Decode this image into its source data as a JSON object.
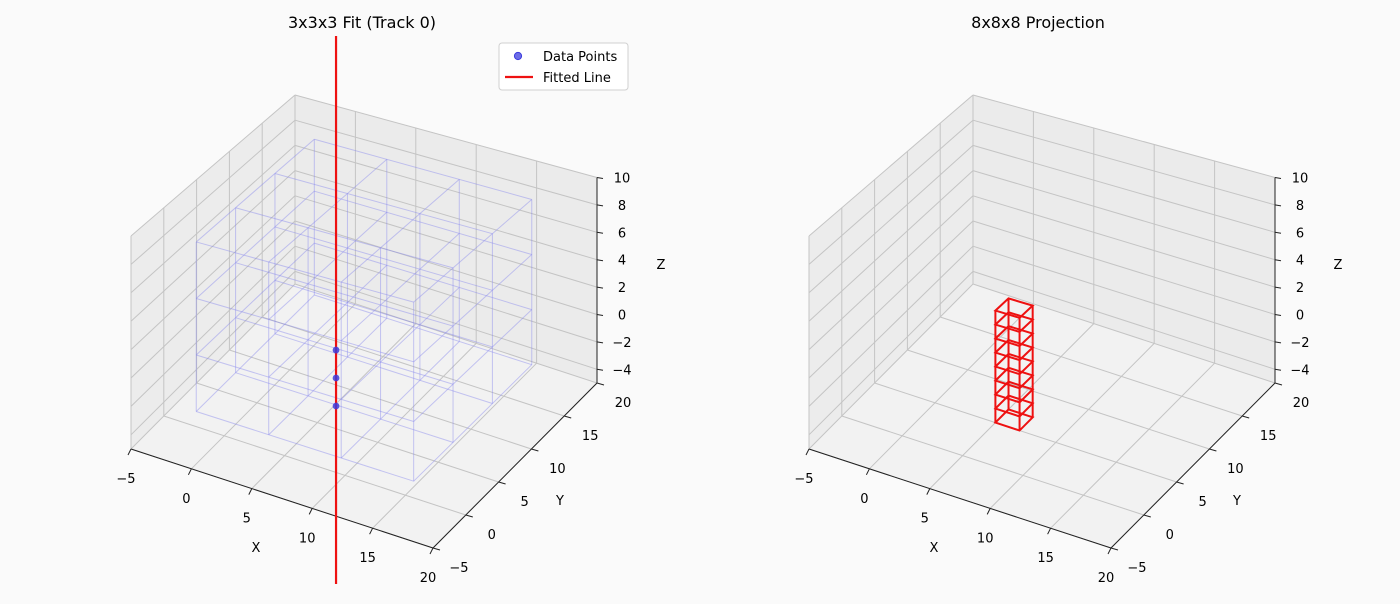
{
  "chart_data": [
    {
      "type": "scatter",
      "title": "3x3x3 Fit (Track 0)",
      "xlabel": "X",
      "ylabel": "Y",
      "zlabel": "Z",
      "xlim": [
        -5,
        20
      ],
      "ylim": [
        -5,
        20
      ],
      "zlim": [
        -5,
        10
      ],
      "x_ticks": [
        "−5",
        "0",
        "5",
        "10",
        "15",
        "20"
      ],
      "y_ticks": [
        "−5",
        "0",
        "5",
        "10",
        "15",
        "20"
      ],
      "z_ticks": [
        "−4",
        "−2",
        "0",
        "2",
        "4",
        "6",
        "8",
        "10"
      ],
      "grid": true,
      "legend_position": "upper right",
      "legend": [
        "Data Points",
        "Fitted Line"
      ],
      "colors": {
        "points": "#3b3bdd",
        "line": "#ee1111",
        "cells": "#8888ee"
      },
      "series": [
        {
          "name": "Data Points",
          "kind": "points",
          "points": [
            [
              6,
              6,
              0
            ],
            [
              6,
              6,
              -2
            ],
            [
              6,
              6,
              -4
            ]
          ]
        },
        {
          "name": "Fitted Line",
          "kind": "line",
          "from": [
            6,
            6,
            -40
          ],
          "to": [
            6,
            6,
            15
          ]
        }
      ],
      "voxel_grid": {
        "x": [
          -1.5,
          4.5,
          10.5,
          16.5
        ],
        "y": [
          -1.5,
          4.5,
          10.5,
          16.5
        ],
        "z": [
          -3,
          1,
          5,
          9
        ]
      }
    },
    {
      "type": "scatter",
      "title": "8x8x8 Projection",
      "xlabel": "X",
      "ylabel": "Y",
      "zlabel": "Z",
      "xlim": [
        -5,
        20
      ],
      "ylim": [
        -5,
        20
      ],
      "zlim": [
        -5,
        10
      ],
      "x_ticks": [
        "−5",
        "0",
        "5",
        "10",
        "15",
        "20"
      ],
      "y_ticks": [
        "−5",
        "0",
        "5",
        "10",
        "15",
        "20"
      ],
      "z_ticks": [
        "−4",
        "−2",
        "0",
        "2",
        "4",
        "6",
        "8",
        "10"
      ],
      "grid": true,
      "colors": {
        "voxels": "#ee1111"
      },
      "voxel_column": {
        "x": [
          5,
          7
        ],
        "y": [
          5,
          7
        ],
        "z_levels": [
          -5,
          -4,
          -3,
          -2,
          -1,
          0,
          1,
          2,
          3
        ]
      }
    }
  ]
}
